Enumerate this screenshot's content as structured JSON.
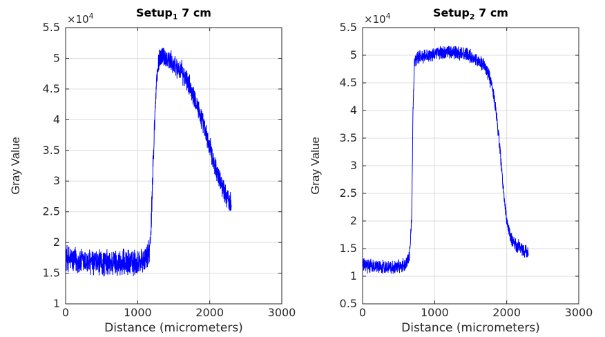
{
  "chart_data": [
    {
      "type": "line",
      "title_main": "Setup",
      "title_sub": "1",
      "title_rest": " 7 cm",
      "xlabel": "Distance (micrometers)",
      "ylabel": "Gray Value",
      "exponent_base": "×10",
      "exponent_power": "4",
      "xlim": [
        0,
        3000
      ],
      "ylim": [
        1,
        5.5
      ],
      "xticks": [
        0,
        1000,
        2000,
        3000
      ],
      "yticks": [
        1,
        1.5,
        2,
        2.5,
        3,
        3.5,
        4,
        4.5,
        5,
        5.5
      ],
      "xtick_labels": [
        "0",
        "1000",
        "2000",
        "3000"
      ],
      "ytick_labels": [
        "1",
        "1.5",
        "2",
        "2.5",
        "3",
        "3.5",
        "4",
        "4.5",
        "5",
        "5.5"
      ],
      "grid": true,
      "color": "#0000ff",
      "x": [
        0,
        100,
        200,
        300,
        400,
        500,
        600,
        700,
        800,
        900,
        1000,
        1100,
        1150,
        1180,
        1220,
        1260,
        1300,
        1350,
        1400,
        1500,
        1600,
        1700,
        1800,
        1850,
        1900,
        1950,
        2000,
        2050,
        2100,
        2150,
        2200,
        2250,
        2300
      ],
      "y": [
        1.75,
        1.72,
        1.68,
        1.68,
        1.66,
        1.66,
        1.66,
        1.67,
        1.66,
        1.66,
        1.68,
        1.72,
        1.8,
        2.0,
        3.5,
        4.6,
        5.0,
        5.05,
        5.0,
        4.9,
        4.8,
        4.6,
        4.35,
        4.15,
        3.95,
        3.75,
        3.55,
        3.35,
        3.15,
        3.0,
        2.85,
        2.7,
        2.65
      ],
      "noise": [
        0.25,
        0.25,
        0.25,
        0.25,
        0.25,
        0.25,
        0.25,
        0.25,
        0.25,
        0.25,
        0.25,
        0.25,
        0.25,
        0.25,
        0.25,
        0.22,
        0.2,
        0.2,
        0.2,
        0.2,
        0.2,
        0.2,
        0.2,
        0.2,
        0.2,
        0.2,
        0.2,
        0.2,
        0.2,
        0.2,
        0.2,
        0.2,
        0.2
      ]
    },
    {
      "type": "line",
      "title_main": "Setup",
      "title_sub": "2",
      "title_rest": " 7 cm",
      "xlabel": "Distance (micrometers)",
      "ylabel": "Gray Value",
      "exponent_base": "×10",
      "exponent_power": "4",
      "xlim": [
        0,
        3000
      ],
      "ylim": [
        0.5,
        5.5
      ],
      "xticks": [
        0,
        1000,
        2000,
        3000
      ],
      "yticks": [
        0.5,
        1,
        1.5,
        2,
        2.5,
        3,
        3.5,
        4,
        4.5,
        5,
        5.5
      ],
      "xtick_labels": [
        "0",
        "1000",
        "2000",
        "3000"
      ],
      "ytick_labels": [
        "0.5",
        "1",
        "1.5",
        "2",
        "2.5",
        "3",
        "3.5",
        "4",
        "4.5",
        "5",
        "5.5"
      ],
      "grid": true,
      "color": "#0000ff",
      "x": [
        0,
        100,
        200,
        300,
        400,
        500,
        600,
        650,
        680,
        700,
        720,
        750,
        800,
        900,
        1000,
        1100,
        1200,
        1300,
        1400,
        1500,
        1600,
        1700,
        1750,
        1800,
        1850,
        1900,
        1950,
        2000,
        2050,
        2100,
        2150,
        2200,
        2250,
        2300
      ],
      "y": [
        1.2,
        1.18,
        1.18,
        1.17,
        1.17,
        1.18,
        1.22,
        1.35,
        2.0,
        4.0,
        4.85,
        4.95,
        4.98,
        5.0,
        5.03,
        5.05,
        5.05,
        5.05,
        5.03,
        4.98,
        4.9,
        4.8,
        4.65,
        4.4,
        4.0,
        3.4,
        2.6,
        2.0,
        1.7,
        1.6,
        1.55,
        1.5,
        1.45,
        1.4
      ],
      "noise": [
        0.14,
        0.14,
        0.14,
        0.14,
        0.14,
        0.14,
        0.14,
        0.14,
        0.14,
        0.14,
        0.14,
        0.14,
        0.14,
        0.14,
        0.14,
        0.14,
        0.14,
        0.14,
        0.14,
        0.14,
        0.14,
        0.14,
        0.14,
        0.14,
        0.14,
        0.14,
        0.14,
        0.14,
        0.14,
        0.14,
        0.14,
        0.14,
        0.14,
        0.14
      ]
    }
  ]
}
